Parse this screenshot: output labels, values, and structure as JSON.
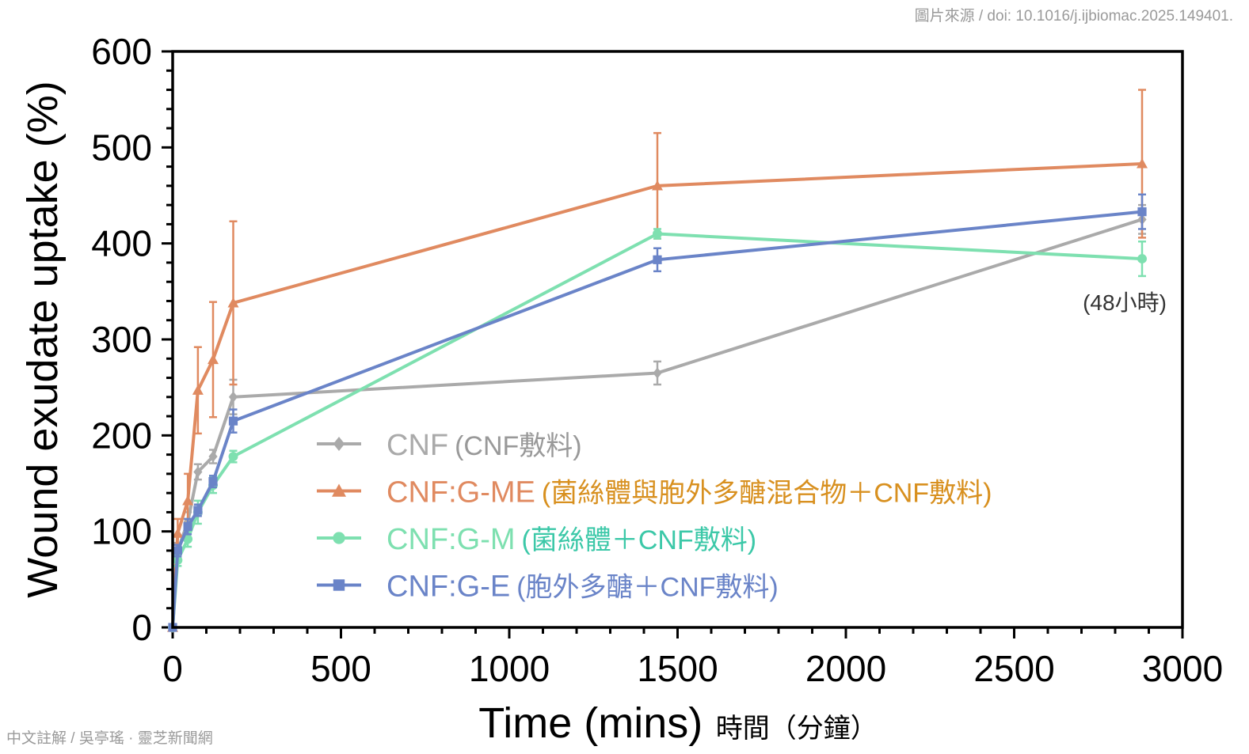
{
  "source_credit": "圖片來源 / doi: 10.1016/j.ijbiomac.2025.149401.",
  "annotation_credit": "中文註解 / 吳亭瑤 · 靈芝新聞網",
  "time_note": "(48小時)",
  "chart_data": {
    "type": "line",
    "xlabel": "Time (mins)",
    "xlabel_cn": "時間（分鐘）",
    "ylabel": "Wound exudate uptake (%)",
    "xlim": [
      0,
      3000
    ],
    "ylim": [
      0,
      600
    ],
    "xticks": [
      0,
      500,
      1000,
      1500,
      2000,
      2500,
      3000
    ],
    "yticks": [
      0,
      100,
      200,
      300,
      400,
      500,
      600
    ],
    "x": [
      0,
      15,
      45,
      75,
      120,
      180,
      1440,
      2880
    ],
    "legend_position": "center-left",
    "series": [
      {
        "name": "CNF",
        "name_cn": "(CNF敷料)",
        "color": "#aaaaaa",
        "label_color": "#aaaaaa",
        "note_color": "#999999",
        "marker": "diamond",
        "values": [
          0,
          80,
          110,
          162,
          178,
          240,
          265,
          425
        ],
        "errors": [
          0,
          8,
          10,
          8,
          7,
          18,
          12,
          15
        ]
      },
      {
        "name": "CNF:G-ME",
        "name_cn": "(菌絲體與胞外多醣混合物＋CNF敷料)",
        "color": "#e08a60",
        "label_color": "#e08a60",
        "note_color": "#d8901f",
        "marker": "triangle",
        "values": [
          0,
          98,
          132,
          247,
          279,
          338,
          460,
          483
        ],
        "errors": [
          0,
          15,
          28,
          45,
          60,
          85,
          55,
          77
        ]
      },
      {
        "name": "CNF:G-M",
        "name_cn": "(菌絲體＋CNF敷料)",
        "color": "#7ee0b0",
        "label_color": "#7ee0b0",
        "note_color": "#3cc8a8",
        "marker": "circle",
        "values": [
          0,
          70,
          92,
          120,
          148,
          178,
          410,
          384
        ],
        "errors": [
          0,
          6,
          8,
          12,
          8,
          6,
          5,
          18
        ]
      },
      {
        "name": "CNF:G-E",
        "name_cn": "(胞外多醣＋CNF敷料)",
        "color": "#6a84c8",
        "label_color": "#6a84c8",
        "note_color": "#6a84c8",
        "marker": "square",
        "values": [
          0,
          80,
          105,
          122,
          152,
          215,
          383,
          433
        ],
        "errors": [
          0,
          6,
          8,
          6,
          6,
          12,
          12,
          18
        ]
      }
    ]
  }
}
